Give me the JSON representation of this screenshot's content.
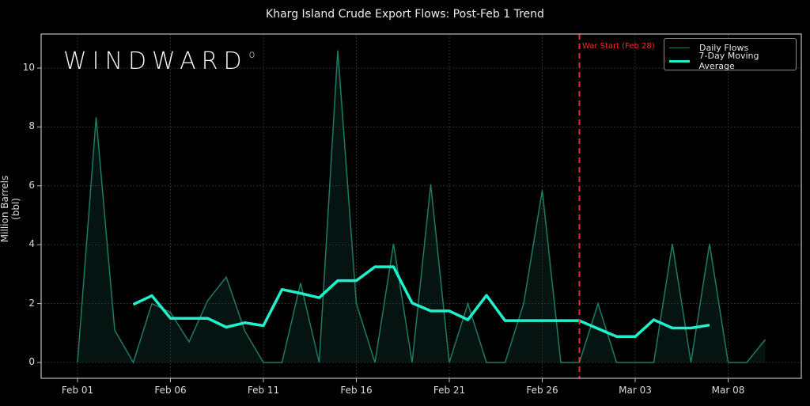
{
  "title": "Kharg Island Crude Export Flows: Post-Feb 1 Trend",
  "logo": {
    "text": "WINDWARD",
    "mark": "o"
  },
  "annotation": {
    "label": "War Start (Feb 28)",
    "date_index": 27,
    "color": "#e8312e"
  },
  "legend": {
    "daily": "Daily Flows",
    "ma": "7-Day Moving Average"
  },
  "axes": {
    "ylabel": "Million Barrels (bbl)",
    "yticks": [
      "0",
      "2",
      "4",
      "6",
      "8",
      "10"
    ],
    "xticks": [
      "Feb 01",
      "Feb 06",
      "Feb 11",
      "Feb 16",
      "Feb 21",
      "Feb 26",
      "Mar 03",
      "Mar 08"
    ]
  },
  "colors": {
    "background": "#000000",
    "daily": "#1f7a66",
    "ma": "#1ef2cc",
    "grid": "#3a3a3a",
    "axis": "#bdbdbd"
  },
  "chart_data": {
    "type": "line",
    "title": "Kharg Island Crude Export Flows: Post-Feb 1 Trend",
    "xlabel": "",
    "ylabel": "Million Barrels (bbl)",
    "ylim": [
      -0.5,
      11.1
    ],
    "grid": true,
    "legend_position": "upper right",
    "x": [
      "Feb 01",
      "Feb 02",
      "Feb 03",
      "Feb 04",
      "Feb 05",
      "Feb 06",
      "Feb 07",
      "Feb 08",
      "Feb 09",
      "Feb 10",
      "Feb 11",
      "Feb 12",
      "Feb 13",
      "Feb 14",
      "Feb 15",
      "Feb 16",
      "Feb 17",
      "Feb 18",
      "Feb 19",
      "Feb 20",
      "Feb 21",
      "Feb 22",
      "Feb 23",
      "Feb 24",
      "Feb 25",
      "Feb 26",
      "Feb 27",
      "Feb 28",
      "Mar 01",
      "Mar 02",
      "Mar 03",
      "Mar 04",
      "Mar 05",
      "Mar 06",
      "Mar 07",
      "Mar 08",
      "Mar 09",
      "Mar 10"
    ],
    "series": [
      {
        "name": "Daily Flows",
        "values": [
          0,
          8.33,
          1.1,
          0,
          2.0,
          1.7,
          0.7,
          2.1,
          2.9,
          1.07,
          0,
          0,
          2.7,
          0,
          10.6,
          2.0,
          0,
          4.03,
          0,
          6.05,
          0,
          2.0,
          0,
          0,
          2.0,
          5.85,
          0,
          0,
          2.0,
          0,
          0,
          0,
          4.03,
          0,
          4.03,
          0,
          0,
          0.78
        ]
      },
      {
        "name": "7-Day Moving Average",
        "values": [
          null,
          null,
          null,
          1.97,
          2.27,
          1.5,
          1.5,
          1.5,
          1.2,
          1.35,
          1.25,
          2.48,
          2.35,
          2.2,
          2.78,
          2.78,
          3.25,
          3.25,
          2.02,
          1.75,
          1.75,
          1.45,
          2.28,
          1.42,
          1.42,
          1.42,
          1.42,
          1.42,
          1.15,
          0.88,
          0.88,
          1.45,
          1.17,
          1.17,
          1.27,
          null,
          null,
          null
        ]
      }
    ],
    "annotations": [
      {
        "type": "vline",
        "x": "Feb 28",
        "label": "War Start (Feb 28)"
      }
    ]
  }
}
